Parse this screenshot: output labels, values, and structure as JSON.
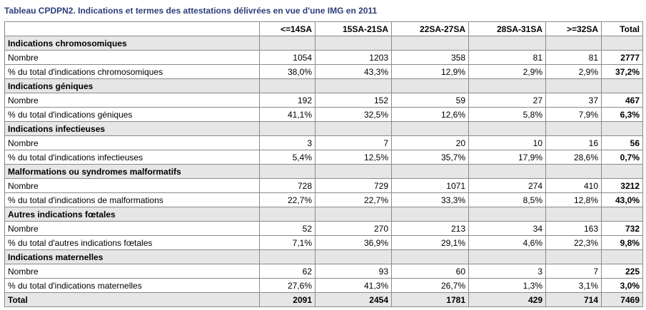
{
  "title": "Tableau CPDPN2. Indications et termes des attestations délivrées en vue d'une IMG en 2011",
  "columns": [
    "<=14SA",
    "15SA-21SA",
    "22SA-27SA",
    "28SA-31SA",
    ">=32SA",
    "Total"
  ],
  "sections": [
    {
      "heading": "Indications chromosomiques",
      "rows": [
        {
          "label": "Nombre",
          "values": [
            "1054",
            "1203",
            "358",
            "81",
            "81"
          ],
          "total": "2777"
        },
        {
          "label": "% du total d'indications chromosomiques",
          "values": [
            "38,0%",
            "43,3%",
            "12,9%",
            "2,9%",
            "2,9%"
          ],
          "total": "37,2%"
        }
      ]
    },
    {
      "heading": "Indications géniques",
      "rows": [
        {
          "label": "Nombre",
          "values": [
            "192",
            "152",
            "59",
            "27",
            "37"
          ],
          "total": "467"
        },
        {
          "label": "% du total d'indications géniques",
          "values": [
            "41,1%",
            "32,5%",
            "12,6%",
            "5,8%",
            "7,9%"
          ],
          "total": "6,3%"
        }
      ]
    },
    {
      "heading": "Indications infectieuses",
      "rows": [
        {
          "label": "Nombre",
          "values": [
            "3",
            "7",
            "20",
            "10",
            "16"
          ],
          "total": "56"
        },
        {
          "label": "% du total d'indications infectieuses",
          "values": [
            "5,4%",
            "12,5%",
            "35,7%",
            "17,9%",
            "28,6%"
          ],
          "total": "0,7%"
        }
      ]
    },
    {
      "heading": "Malformations ou syndromes malformatifs",
      "rows": [
        {
          "label": "Nombre",
          "values": [
            "728",
            "729",
            "1071",
            "274",
            "410"
          ],
          "total": "3212"
        },
        {
          "label": "% du total d'indications de malformations",
          "values": [
            "22,7%",
            "22,7%",
            "33,3%",
            "8,5%",
            "12,8%"
          ],
          "total": "43,0%"
        }
      ]
    },
    {
      "heading": "Autres indications fœtales",
      "rows": [
        {
          "label": "Nombre",
          "values": [
            "52",
            "270",
            "213",
            "34",
            "163"
          ],
          "total": "732"
        },
        {
          "label": "% du total d'autres indications fœtales",
          "values": [
            "7,1%",
            "36,9%",
            "29,1%",
            "4,6%",
            "22,3%"
          ],
          "total": "9,8%"
        }
      ]
    },
    {
      "heading": "Indications maternelles",
      "rows": [
        {
          "label": "Nombre",
          "values": [
            "62",
            "93",
            "60",
            "3",
            "7"
          ],
          "total": "225"
        },
        {
          "label": "% du total d'indications maternelles",
          "values": [
            "27,6%",
            "41,3%",
            "26,7%",
            "1,3%",
            "3,1%"
          ],
          "total": "3,0%"
        }
      ]
    }
  ],
  "grand_total": {
    "label": "Total",
    "values": [
      "2091",
      "2454",
      "1781",
      "429",
      "714"
    ],
    "total": "7469"
  }
}
